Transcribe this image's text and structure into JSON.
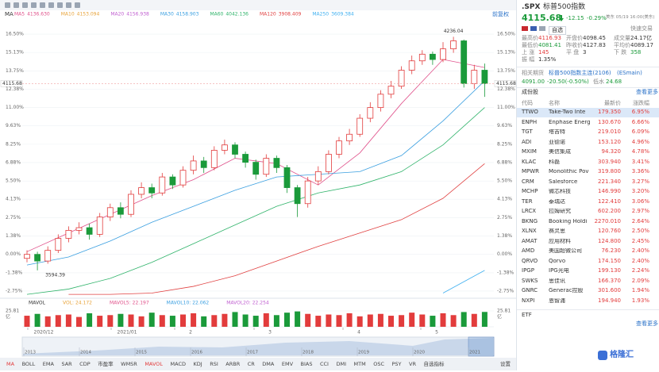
{
  "toolbar": {
    "adjust": "前复权"
  },
  "ma_legend": {
    "label": "MA",
    "items": [
      {
        "name": "MA5",
        "value": "4136.630",
        "color": "#e0508a",
        "values": [
          0.2,
          1.6,
          3.0,
          4.4,
          5.6,
          7.2,
          6.8,
          5.2,
          7.6,
          11.3,
          14.6,
          14.0
        ]
      },
      {
        "name": "MA10",
        "value": "4153.094",
        "color": "#e8a33a"
      },
      {
        "name": "MA20",
        "value": "4156.938",
        "color": "#c060d0"
      },
      {
        "name": "MA30",
        "value": "4158.903",
        "color": "#3a9fe0",
        "values": [
          -0.8,
          -0.2,
          1.0,
          2.4,
          3.6,
          4.8,
          5.8,
          6.0,
          6.2,
          7.4,
          10.0,
          13.0
        ]
      },
      {
        "name": "MA60",
        "value": "4042.136",
        "color": "#2fb36a",
        "values": [
          -3.0,
          -2.6,
          -1.8,
          -0.6,
          0.8,
          2.2,
          3.6,
          4.6,
          5.2,
          6.2,
          8.2,
          11.0
        ]
      },
      {
        "name": "MA120",
        "value": "3908.409",
        "color": "#e04040",
        "values": [
          null,
          -3.0,
          -3.0,
          -2.9,
          -2.4,
          -1.6,
          -0.5,
          0.6,
          1.6,
          2.6,
          4.2,
          6.8
        ]
      },
      {
        "name": "MA250",
        "value": "3609.384",
        "color": "#40b0f0",
        "values": [
          null,
          null,
          null,
          null,
          null,
          null,
          null,
          null,
          null,
          null,
          -2.9,
          -1.2
        ]
      }
    ]
  },
  "chart": {
    "ylim": [
      -3.05,
      16.92
    ],
    "yticks": [
      {
        "value": 16.5,
        "label": "16.50%"
      },
      {
        "value": 15.13,
        "label": "15.13%"
      },
      {
        "value": 13.75,
        "label": "13.75%"
      },
      {
        "value": 12.38,
        "label": "12.38%"
      },
      {
        "value": 11,
        "label": "11.00%"
      },
      {
        "value": 9.63,
        "label": "9.63%"
      },
      {
        "value": 8.25,
        "label": "8.25%"
      },
      {
        "value": 6.88,
        "label": "6.88%"
      },
      {
        "value": 5.5,
        "label": "5.50%"
      },
      {
        "value": 4.13,
        "label": "4.13%"
      },
      {
        "value": 2.75,
        "label": "2.75%"
      },
      {
        "value": 1.38,
        "label": "1.38%"
      },
      {
        "value": 0,
        "label": "0.00%"
      },
      {
        "value": -1.38,
        "label": "-1.38%"
      },
      {
        "value": -2.75,
        "label": "-2.75%"
      }
    ],
    "candles": [
      [
        -0.3,
        0.0,
        0.3,
        -0.6
      ],
      [
        0.0,
        -0.5,
        0.2,
        -1.2
      ],
      [
        -0.5,
        0.3,
        0.6,
        -0.7
      ],
      [
        0.3,
        1.2,
        1.5,
        0.1
      ],
      [
        1.2,
        1.8,
        2.1,
        0.9
      ],
      [
        1.8,
        2.0,
        2.4,
        1.5
      ],
      [
        2.0,
        1.5,
        2.3,
        1.1
      ],
      [
        1.5,
        2.8,
        3.1,
        1.3
      ],
      [
        2.8,
        3.5,
        3.8,
        2.5
      ],
      [
        3.5,
        3.0,
        3.9,
        2.7
      ],
      [
        3.0,
        4.5,
        4.8,
        2.8
      ],
      [
        4.5,
        5.0,
        5.4,
        4.2
      ],
      [
        5.0,
        4.6,
        5.3,
        4.2
      ],
      [
        4.6,
        5.8,
        6.1,
        4.4
      ],
      [
        5.8,
        5.2,
        6.0,
        4.9
      ],
      [
        5.2,
        6.3,
        6.6,
        5.0
      ],
      [
        6.3,
        7.0,
        7.4,
        6.0
      ],
      [
        7.0,
        6.5,
        7.3,
        6.1
      ],
      [
        6.5,
        7.8,
        8.1,
        6.3
      ],
      [
        7.8,
        8.2,
        8.6,
        7.5
      ],
      [
        8.2,
        7.5,
        8.4,
        7.2
      ],
      [
        7.5,
        6.9,
        7.7,
        6.5
      ],
      [
        6.9,
        6.0,
        7.1,
        5.6
      ],
      [
        6.0,
        7.2,
        7.5,
        5.8
      ],
      [
        7.2,
        6.5,
        7.4,
        6.1
      ],
      [
        6.5,
        5.0,
        6.7,
        4.6
      ],
      [
        5.0,
        3.8,
        5.2,
        2.8
      ],
      [
        3.8,
        5.5,
        5.8,
        3.5
      ],
      [
        5.5,
        6.2,
        6.6,
        5.2
      ],
      [
        6.2,
        7.5,
        7.8,
        6.0
      ],
      [
        7.5,
        8.5,
        8.8,
        7.2
      ],
      [
        8.5,
        9.0,
        9.4,
        8.2
      ],
      [
        9.0,
        10.2,
        10.5,
        8.8
      ],
      [
        10.2,
        11.0,
        11.4,
        9.9
      ],
      [
        11.0,
        12.0,
        12.3,
        10.7
      ],
      [
        12.0,
        12.6,
        13.0,
        11.7
      ],
      [
        12.6,
        13.8,
        14.1,
        12.4
      ],
      [
        13.8,
        14.5,
        14.9,
        13.5
      ],
      [
        14.5,
        15.0,
        15.3,
        14.2
      ],
      [
        15.0,
        14.6,
        15.2,
        14.2
      ],
      [
        14.6,
        15.4,
        15.9,
        14.4
      ],
      [
        15.4,
        16.0,
        16.3,
        15.1
      ],
      [
        16.0,
        12.8,
        16.1,
        12.5
      ],
      [
        12.8,
        13.8,
        14.2,
        12.4
      ],
      [
        13.8,
        12.8,
        14.3,
        11.8
      ]
    ],
    "ma_x": [
      0,
      4,
      8,
      12,
      16,
      20,
      24,
      28,
      32,
      36,
      40,
      44
    ],
    "high_label": "4236.04",
    "low_label": "3594.39",
    "last_label": "4115.68"
  },
  "volume": {
    "legend": [
      {
        "text": "MAVOL",
        "color": "#333333"
      },
      {
        "text": "VOL: 24.172",
        "color": "#e8a33a"
      },
      {
        "text": "MAVOL5: 22.197",
        "color": "#e0508a"
      },
      {
        "text": "MAVOL10: 22.062",
        "color": "#3a9fe0"
      },
      {
        "text": "MAVOL20: 22.254",
        "color": "#c060d0"
      }
    ],
    "ylim": [
      0,
      25.81
    ],
    "unit": "亿",
    "values": [
      18,
      21,
      17,
      19,
      20,
      16,
      22,
      18,
      19,
      21,
      20,
      17,
      23,
      19,
      18,
      20,
      22,
      17,
      19,
      21,
      24,
      20,
      18,
      22,
      19,
      23,
      25,
      21,
      18,
      20,
      19,
      22,
      17,
      20,
      21,
      18,
      19,
      23,
      20,
      18,
      22,
      19,
      24,
      21,
      24.17
    ]
  },
  "time_axis": [
    "2020/12",
    "2021/01",
    "2",
    "3",
    "4",
    "5"
  ],
  "overview_years": [
    "2013",
    "2014",
    "2015",
    "2016",
    "2017",
    "2018",
    "2019",
    "2020",
    "2021"
  ],
  "indicator_tabs": [
    "MA",
    "BOLL",
    "EMA",
    "SAR",
    "CDP",
    "市盈率",
    "WMSR",
    "MAVOL",
    "MACD",
    "KDJ",
    "RSI",
    "ARBR",
    "CR",
    "DMA",
    "EMV",
    "BIAS",
    "CCI",
    "DMI",
    "MTM",
    "OSC",
    "PSY",
    "VR",
    "自选指标"
  ],
  "active_tabs": [
    0,
    7
  ],
  "settings": "设置",
  "quote": {
    "symbol": ".SPX",
    "name": "标普500指数",
    "price": "4115.68",
    "change": "-12.15",
    "change_pct": "-0.29%",
    "time": "美东 05/19 16:00(美东)",
    "watch": "自选",
    "trade": "快速交易",
    "stats": [
      [
        "最高价",
        "4116.93",
        "开盘价",
        "4098.45",
        "成交量",
        "24.17亿"
      ],
      [
        "最低价",
        "4081.41",
        "昨收价",
        "4127.83",
        "平均价",
        "4089.17"
      ],
      [
        "上 涨",
        "145",
        "平 盘",
        "3",
        "下 跌",
        "358"
      ],
      [
        "振 幅",
        "1.35%"
      ]
    ]
  },
  "futures": {
    "label": "相关期货",
    "name": "标普500指数主连(2106)",
    "code": "(ESmain)",
    "price": "4091.00",
    "change": "-20.50(-0.50%)",
    "basis_label": "低水",
    "basis": "24.68"
  },
  "constituents": {
    "title": "成份股",
    "more": "查看更多",
    "columns": [
      "代码",
      "名称",
      "最新价",
      "涨跌幅"
    ],
    "rows": [
      [
        "TTWO",
        "Take-Two Inte",
        "179.350",
        "6.95%"
      ],
      [
        "ENPH",
        "Enphase Energ",
        "130.670",
        "6.66%"
      ],
      [
        "TGT",
        "塔吉特",
        "219.010",
        "6.09%"
      ],
      [
        "ADI",
        "亚德诺",
        "153.120",
        "4.96%"
      ],
      [
        "MXIM",
        "美信集成",
        "94.320",
        "4.78%"
      ],
      [
        "KLAC",
        "科磊",
        "303.940",
        "3.41%"
      ],
      [
        "MPWR",
        "Monolithic Pov",
        "319.800",
        "3.36%"
      ],
      [
        "CRM",
        "Salesforce",
        "221.340",
        "3.27%"
      ],
      [
        "MCHP",
        "微芯科技",
        "146.990",
        "3.20%"
      ],
      [
        "TER",
        "泰瑞达",
        "122.410",
        "3.06%"
      ],
      [
        "LRCX",
        "拉姆研究",
        "602.200",
        "2.97%"
      ],
      [
        "BKNG",
        "Booking Holdi",
        "2270.010",
        "2.64%"
      ],
      [
        "XLNX",
        "赛灵思",
        "120.760",
        "2.50%"
      ],
      [
        "AMAT",
        "应用材料",
        "124.800",
        "2.45%"
      ],
      [
        "AMD",
        "美国超微公司",
        "76.230",
        "2.40%"
      ],
      [
        "QRVO",
        "Qorvo",
        "174.150",
        "2.40%"
      ],
      [
        "IPGP",
        "IPG光电",
        "199.130",
        "2.24%"
      ],
      [
        "SWKS",
        "思佳讯",
        "166.370",
        "2.09%"
      ],
      [
        "GNRC",
        "Generac控股",
        "301.600",
        "1.94%"
      ],
      [
        "NXPI",
        "恩智浦",
        "194.940",
        "1.93%"
      ]
    ]
  },
  "etf": {
    "title": "ETF",
    "more": "查看更多"
  },
  "logo": "格隆汇"
}
